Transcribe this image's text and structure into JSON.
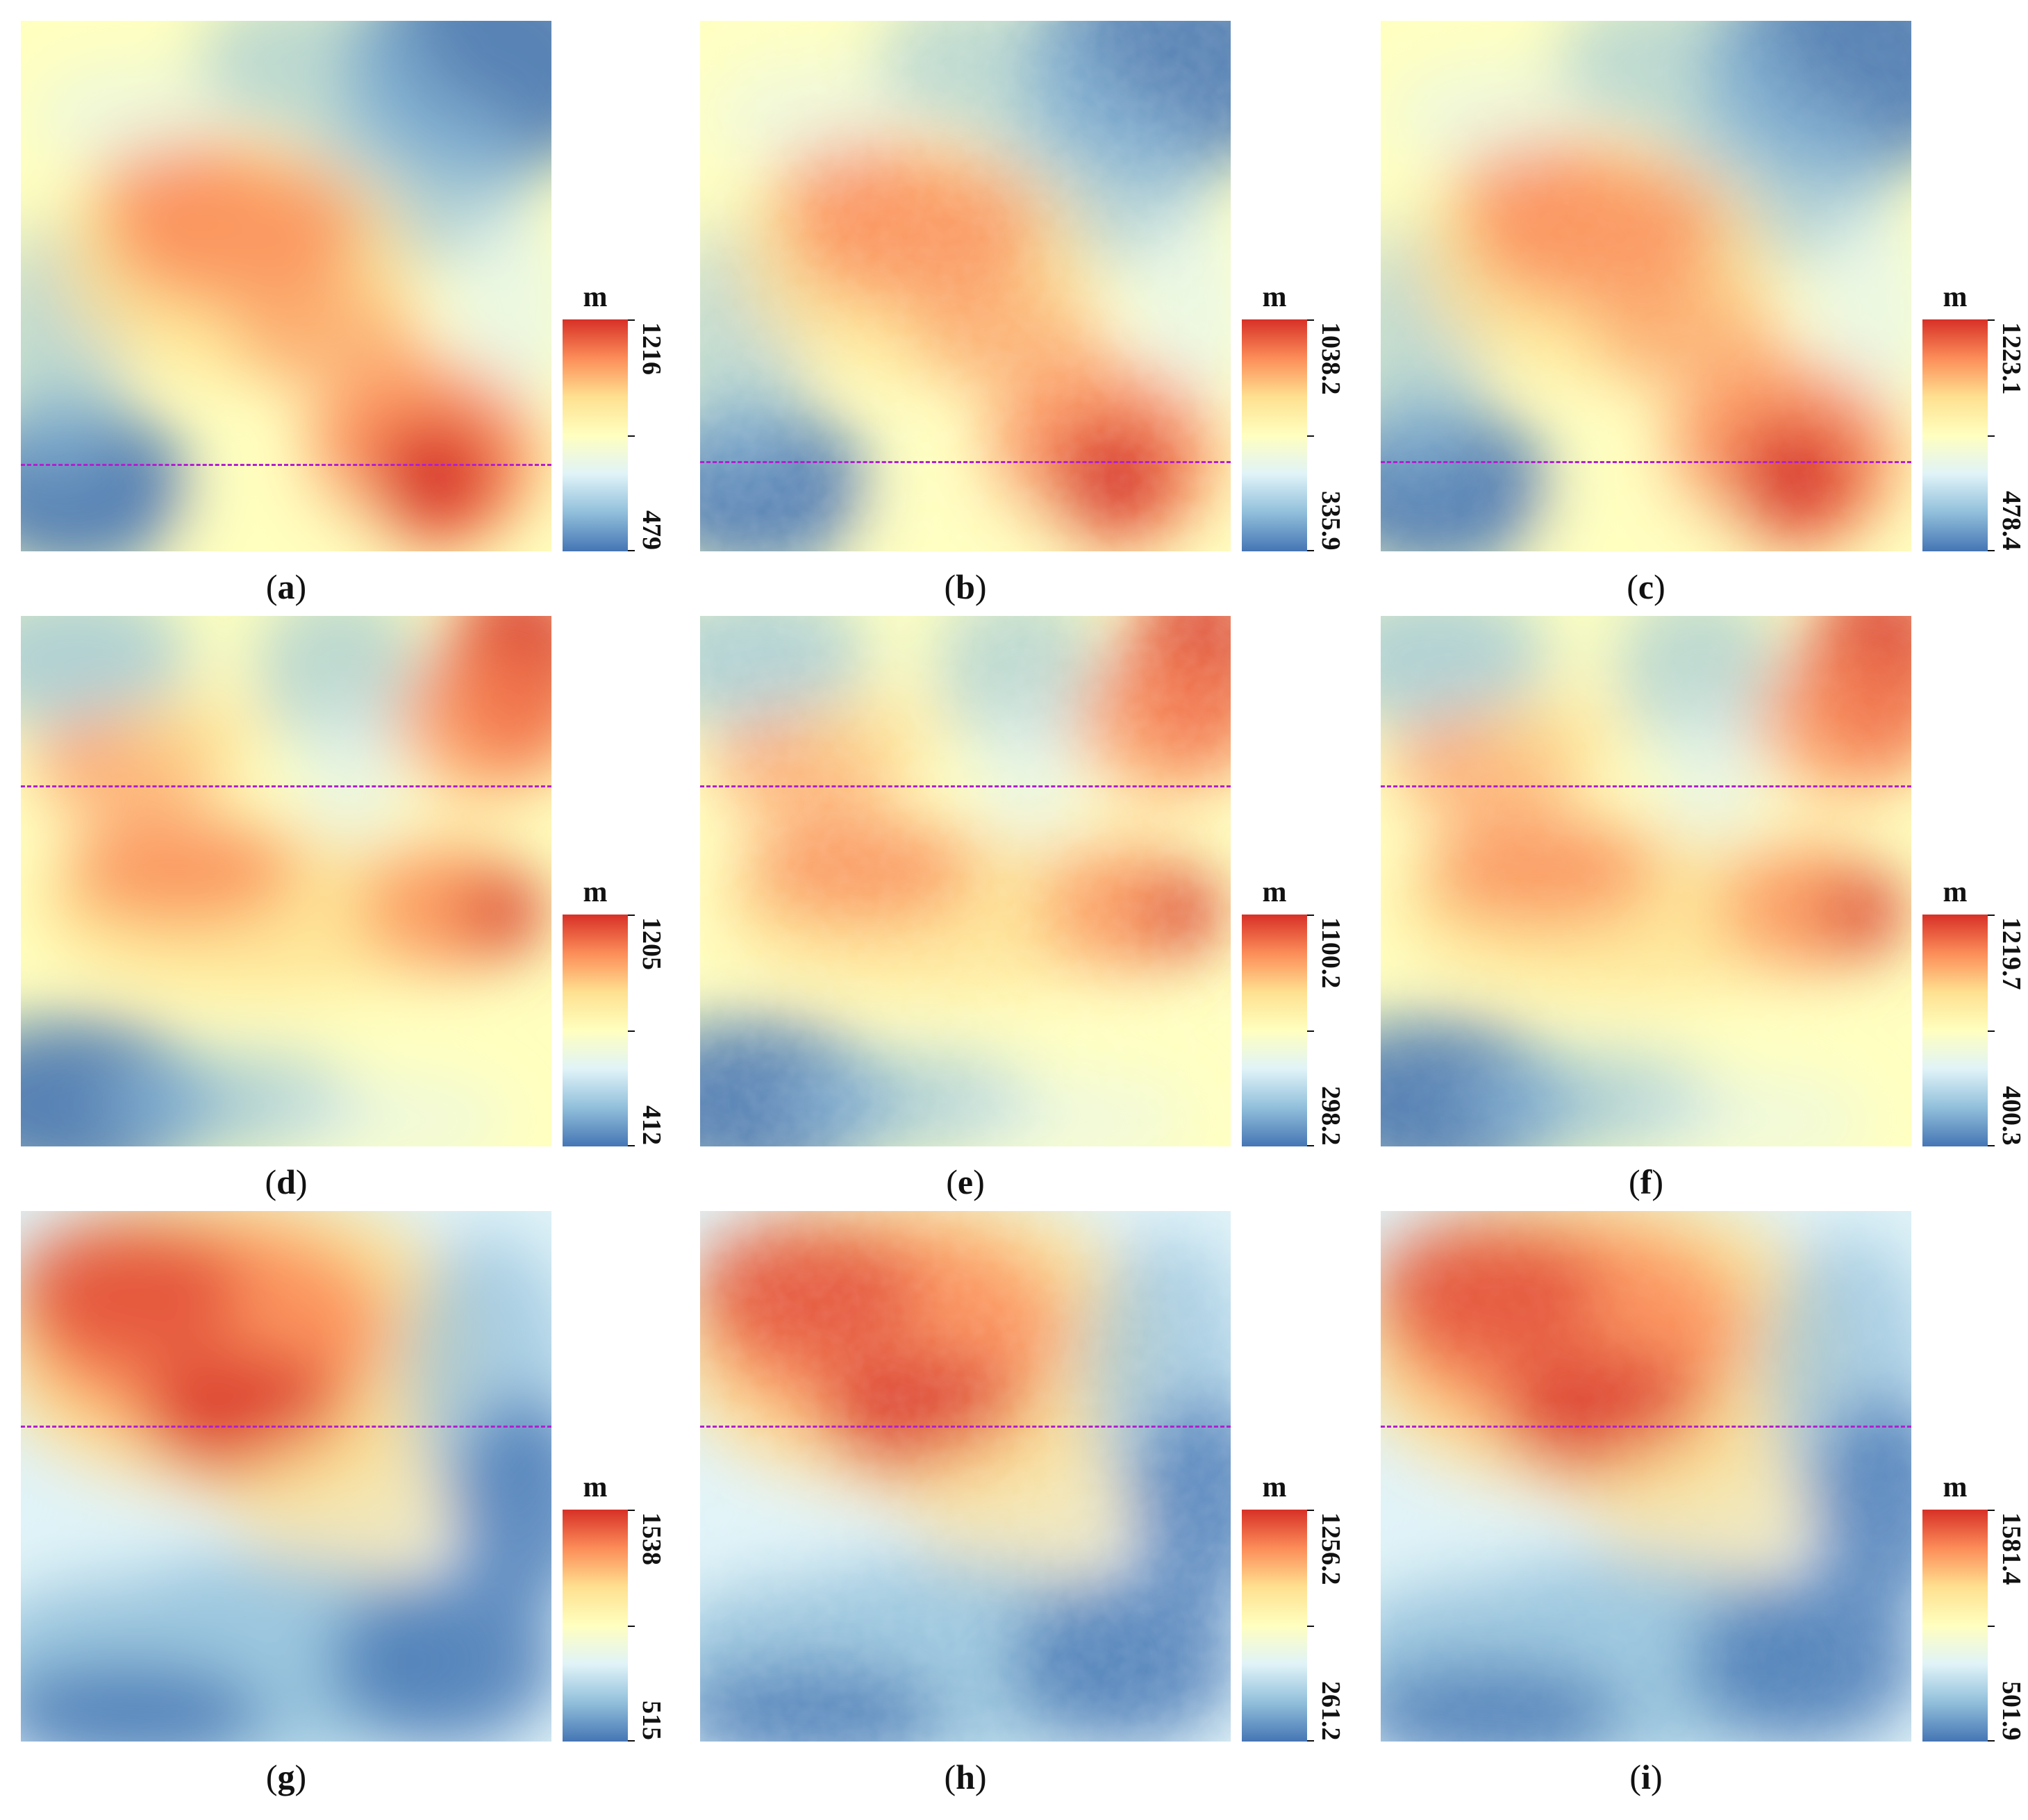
{
  "panels": [
    {
      "letter": "a",
      "unit": "m",
      "max_label": "1216",
      "min_label": "479",
      "profile_fraction": 0.835,
      "variant": 0,
      "roughness": 0.0
    },
    {
      "letter": "b",
      "unit": "m",
      "max_label": "1038.2",
      "min_label": "335.9",
      "profile_fraction": 0.83,
      "variant": 0,
      "roughness": 0.55
    },
    {
      "letter": "c",
      "unit": "m",
      "max_label": "1223.1",
      "min_label": "478.4",
      "profile_fraction": 0.83,
      "variant": 0,
      "roughness": 0.25
    },
    {
      "letter": "d",
      "unit": "m",
      "max_label": "1205",
      "min_label": "412",
      "profile_fraction": 0.32,
      "variant": 1,
      "roughness": 0.0
    },
    {
      "letter": "e",
      "unit": "m",
      "max_label": "1100.2",
      "min_label": "298.2",
      "profile_fraction": 0.32,
      "variant": 1,
      "roughness": 0.55
    },
    {
      "letter": "f",
      "unit": "m",
      "max_label": "1219.7",
      "min_label": "400.3",
      "profile_fraction": 0.32,
      "variant": 1,
      "roughness": 0.25
    },
    {
      "letter": "g",
      "unit": "m",
      "max_label": "1538",
      "min_label": "515",
      "profile_fraction": 0.405,
      "variant": 2,
      "roughness": 0.0
    },
    {
      "letter": "h",
      "unit": "m",
      "max_label": "1256.2",
      "min_label": "261.2",
      "profile_fraction": 0.405,
      "variant": 2,
      "roughness": 0.55
    },
    {
      "letter": "i",
      "unit": "m",
      "max_label": "1581.4",
      "min_label": "501.9",
      "profile_fraction": 0.405,
      "variant": 2,
      "roughness": 0.25
    }
  ],
  "colors": {
    "ramp": [
      "#4575b4",
      "#91bfdb",
      "#e0f3f8",
      "#ffffbf",
      "#fee090",
      "#fc8d59",
      "#d73027"
    ],
    "profile_line": "#b21fd0"
  }
}
